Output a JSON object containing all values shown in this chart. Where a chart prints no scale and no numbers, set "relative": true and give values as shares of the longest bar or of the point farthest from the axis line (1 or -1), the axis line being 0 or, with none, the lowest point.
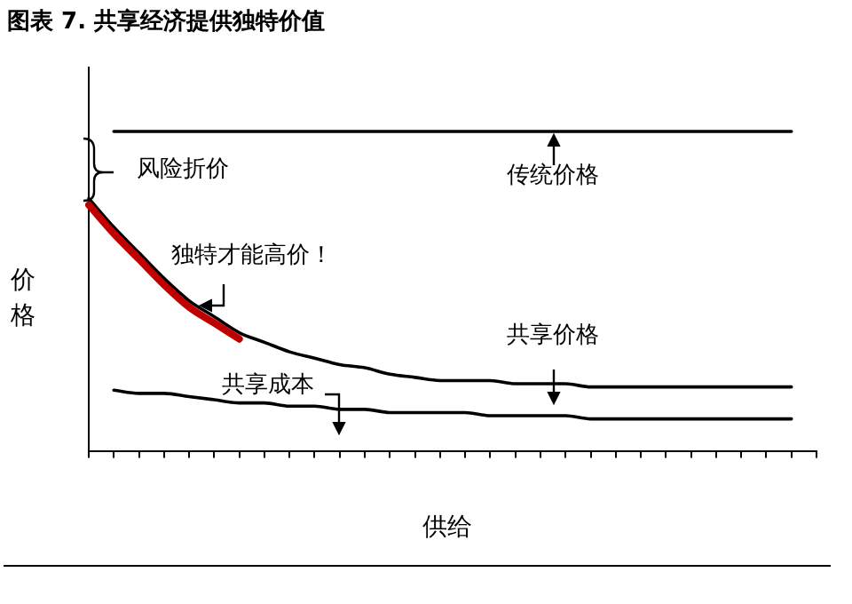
{
  "chart_data": {
    "type": "line",
    "title": "图表 7. 共享经济提供独特价值",
    "xlabel": "供给",
    "ylabel": "价格",
    "relative": true,
    "grid": false,
    "marker": "none",
    "line_style": "solid",
    "categories": [
      null,
      null,
      null,
      null,
      null,
      null,
      null,
      null,
      null,
      null,
      null,
      null,
      null,
      null,
      null,
      null,
      null,
      null,
      null,
      null,
      null,
      null,
      null,
      null,
      null,
      null,
      null,
      null,
      null,
      null
    ],
    "series": [
      {
        "name": "传统价格",
        "color": "#000000",
        "values": [
          null,
          1,
          1,
          1,
          1,
          1,
          1,
          1,
          1,
          1,
          1,
          1,
          1,
          1,
          1,
          1,
          1,
          1,
          1,
          1,
          1,
          1,
          1,
          1,
          1,
          1,
          1,
          1,
          1,
          null
        ]
      },
      {
        "name": "共享价格",
        "color": "#000000",
        "values": [
          0.79,
          0.7,
          0.62,
          0.54,
          0.47,
          0.42,
          0.37,
          0.34,
          0.31,
          0.29,
          0.27,
          0.26,
          0.24,
          0.23,
          0.22,
          0.22,
          0.22,
          0.21,
          0.21,
          0.21,
          0.2,
          0.2,
          0.2,
          0.2,
          0.2,
          0.2,
          0.2,
          0.2,
          0.2,
          null
        ]
      },
      {
        "name": "共享成本",
        "color": "#000000",
        "values": [
          null,
          0.19,
          0.18,
          0.18,
          0.17,
          0.16,
          0.15,
          0.15,
          0.14,
          0.14,
          0.13,
          0.13,
          0.12,
          0.12,
          0.12,
          0.12,
          0.11,
          0.11,
          0.11,
          0.11,
          0.1,
          0.1,
          0.1,
          0.1,
          0.1,
          0.1,
          0.1,
          0.1,
          0.1,
          null
        ]
      },
      {
        "name": "独特才能高价！",
        "color": "#c00000",
        "values": [
          0.77,
          0.68,
          0.6,
          0.52,
          0.45,
          0.4,
          0.35,
          null,
          null,
          null,
          null,
          null,
          null,
          null,
          null,
          null,
          null,
          null,
          null,
          null,
          null,
          null,
          null,
          null,
          null,
          null,
          null,
          null,
          null,
          null
        ]
      }
    ],
    "annotations": [
      "风险折价"
    ]
  }
}
